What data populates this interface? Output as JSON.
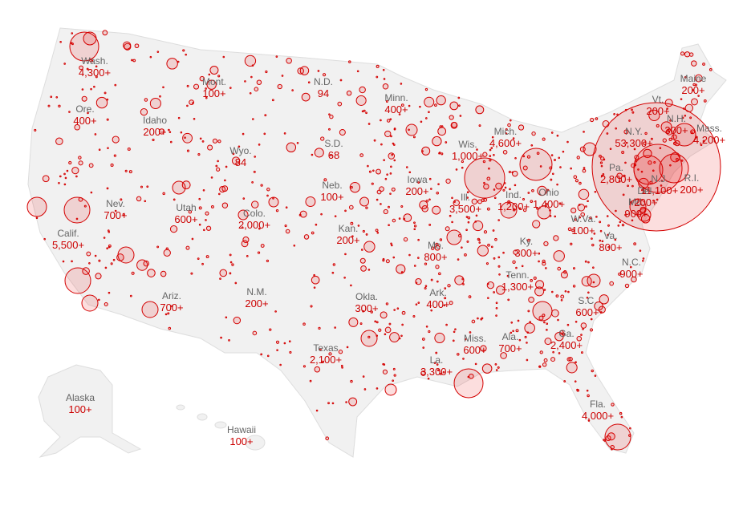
{
  "states": [
    {
      "name": "Wash.",
      "value": "4,300+"
    },
    {
      "name": "Ore.",
      "value": "400+"
    },
    {
      "name": "Idaho",
      "value": "200+"
    },
    {
      "name": "Mont.",
      "value": "100+"
    },
    {
      "name": "Wyo.",
      "value": "84"
    },
    {
      "name": "N.D.",
      "value": "94"
    },
    {
      "name": "S.D.",
      "value": "68"
    },
    {
      "name": "Minn.",
      "value": "400+"
    },
    {
      "name": "Nev.",
      "value": "700+"
    },
    {
      "name": "Utah",
      "value": "600+"
    },
    {
      "name": "Colo.",
      "value": "2,000+"
    },
    {
      "name": "Neb.",
      "value": "100+"
    },
    {
      "name": "Iowa",
      "value": "200+"
    },
    {
      "name": "Calif.",
      "value": "5,500+"
    },
    {
      "name": "Kan.",
      "value": "200+"
    },
    {
      "name": "Mo.",
      "value": "800+"
    },
    {
      "name": "Ill.",
      "value": "3,500+"
    },
    {
      "name": "Wis.",
      "value": "1,000+"
    },
    {
      "name": "Mich.",
      "value": "4,600+"
    },
    {
      "name": "Ind.",
      "value": "1,200+"
    },
    {
      "name": "Ohio",
      "value": "1,400+"
    },
    {
      "name": "Ky.",
      "value": "300+"
    },
    {
      "name": "Tenn.",
      "value": "1,300+"
    },
    {
      "name": "Ariz.",
      "value": "700+"
    },
    {
      "name": "N.M.",
      "value": "200+"
    },
    {
      "name": "Okla.",
      "value": "300+"
    },
    {
      "name": "Ark.",
      "value": "400+"
    },
    {
      "name": "Texas",
      "value": "2,100+"
    },
    {
      "name": "La.",
      "value": "3,300+"
    },
    {
      "name": "Miss.",
      "value": "600+"
    },
    {
      "name": "Ala.",
      "value": "700+"
    },
    {
      "name": "Ga.",
      "value": "2,400+"
    },
    {
      "name": "S.C.",
      "value": "600+"
    },
    {
      "name": "N.C.",
      "value": "900+"
    },
    {
      "name": "Va.",
      "value": "800+"
    },
    {
      "name": "W.Va.",
      "value": "100+"
    },
    {
      "name": "Fla.",
      "value": "4,000+"
    },
    {
      "name": "Alaska",
      "value": "100+"
    },
    {
      "name": "Hawaii",
      "value": "100+"
    },
    {
      "name": "Maine",
      "value": "200+"
    },
    {
      "name": "Vt.",
      "value": "200+"
    },
    {
      "name": "N.Y.",
      "value": "53,300+"
    },
    {
      "name": "N.H.",
      "value": "300+"
    },
    {
      "name": "Mass.",
      "value": "4,200+"
    },
    {
      "name": "Pa.",
      "value": "2,800+"
    },
    {
      "name": "N.J.",
      "value": "11,100+"
    },
    {
      "name": "R.I.",
      "value": "200+"
    },
    {
      "name": "Md.",
      "value": "900+"
    },
    {
      "name": "Del.",
      "value": "200+"
    }
  ]
}
